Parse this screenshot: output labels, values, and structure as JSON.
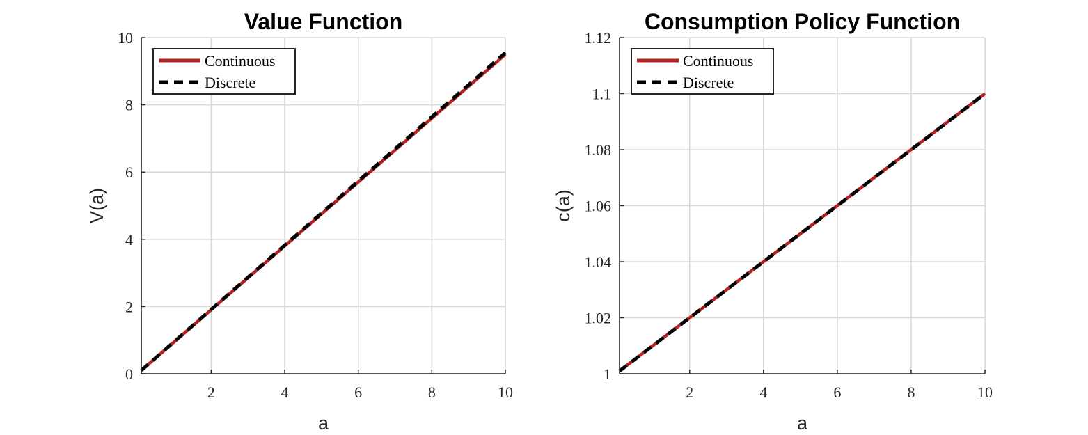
{
  "chart_data": [
    {
      "type": "line",
      "title": "Value Function",
      "xlabel": "a",
      "ylabel": "V(a)",
      "xlim": [
        0.1,
        10
      ],
      "ylim": [
        0,
        10
      ],
      "xticks": [
        2,
        4,
        6,
        8,
        10
      ],
      "xtick_labels": [
        "2",
        "4",
        "6",
        "8",
        "10"
      ],
      "yticks": [
        0,
        2,
        4,
        6,
        8,
        10
      ],
      "ytick_labels": [
        "0",
        "2",
        "4",
        "6",
        "8",
        "10"
      ],
      "grid": true,
      "legend_position": "top-left",
      "series": [
        {
          "name": "Continuous",
          "color": "#B22222",
          "style": "solid",
          "x": [
            0.1,
            10
          ],
          "y": [
            0.1,
            9.5
          ]
        },
        {
          "name": "Discrete",
          "color": "#000000",
          "style": "dashed",
          "x": [
            0.1,
            10
          ],
          "y": [
            0.1,
            9.55
          ]
        }
      ]
    },
    {
      "type": "line",
      "title": "Consumption Policy Function",
      "xlabel": "a",
      "ylabel": "c(a)",
      "xlim": [
        0.1,
        10
      ],
      "ylim": [
        1,
        1.12
      ],
      "xticks": [
        2,
        4,
        6,
        8,
        10
      ],
      "xtick_labels": [
        "2",
        "4",
        "6",
        "8",
        "10"
      ],
      "yticks": [
        1,
        1.02,
        1.04,
        1.06,
        1.08,
        1.1,
        1.12
      ],
      "ytick_labels": [
        "1",
        "1.02",
        "1.04",
        "1.06",
        "1.08",
        "1.1",
        "1.12"
      ],
      "grid": true,
      "legend_position": "top-left",
      "series": [
        {
          "name": "Continuous",
          "color": "#B22222",
          "style": "solid",
          "x": [
            0.1,
            10
          ],
          "y": [
            1.001,
            1.1
          ]
        },
        {
          "name": "Discrete",
          "color": "#000000",
          "style": "dashed",
          "x": [
            0.1,
            10
          ],
          "y": [
            1.001,
            1.1
          ]
        }
      ]
    }
  ]
}
